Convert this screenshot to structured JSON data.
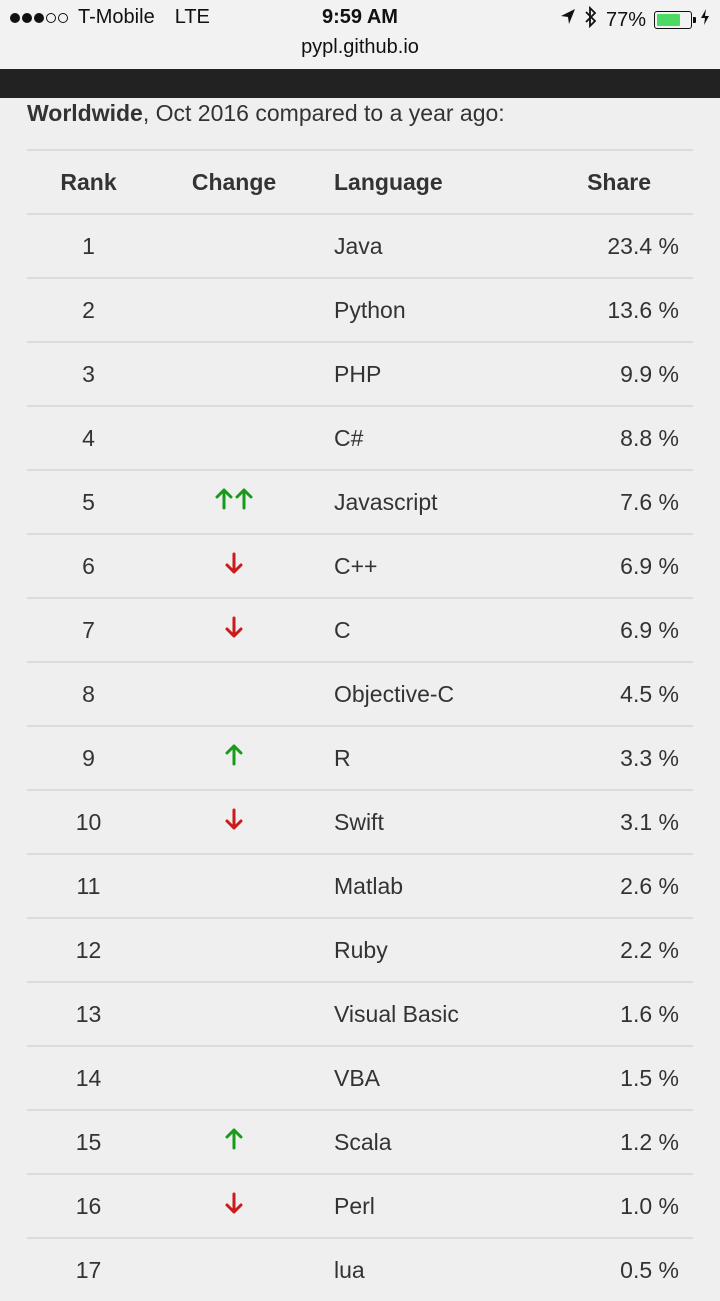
{
  "status_bar": {
    "carrier": "T-Mobile",
    "network": "LTE",
    "time": "9:59 AM",
    "battery_percent": "77%",
    "signal_bars_filled": 3,
    "signal_bars_total": 5,
    "battery_level": 0.77,
    "colors": {
      "battery_fill": "#4cd964"
    },
    "icons": [
      "location-arrow-icon",
      "bluetooth-icon",
      "battery-icon",
      "charging-bolt-icon"
    ]
  },
  "browser": {
    "url": "pypl.github.io"
  },
  "intro": {
    "region": "Worldwide",
    "text": ", Oct 2016 compared to a year ago:"
  },
  "table": {
    "headers": {
      "rank": "Rank",
      "change": "Change",
      "language": "Language",
      "share": "Share"
    },
    "colors": {
      "up": "#1a9a1a",
      "down": "#cc1a1a"
    },
    "rows": [
      {
        "rank": "1",
        "change": "none",
        "language": "Java",
        "share": "23.4 %"
      },
      {
        "rank": "2",
        "change": "none",
        "language": "Python",
        "share": "13.6 %"
      },
      {
        "rank": "3",
        "change": "none",
        "language": "PHP",
        "share": "9.9 %"
      },
      {
        "rank": "4",
        "change": "none",
        "language": "C#",
        "share": "8.8 %"
      },
      {
        "rank": "5",
        "change": "up2",
        "language": "Javascript",
        "share": "7.6 %"
      },
      {
        "rank": "6",
        "change": "down",
        "language": "C++",
        "share": "6.9 %"
      },
      {
        "rank": "7",
        "change": "down",
        "language": "C",
        "share": "6.9 %"
      },
      {
        "rank": "8",
        "change": "none",
        "language": "Objective-C",
        "share": "4.5 %"
      },
      {
        "rank": "9",
        "change": "up",
        "language": "R",
        "share": "3.3 %"
      },
      {
        "rank": "10",
        "change": "down",
        "language": "Swift",
        "share": "3.1 %"
      },
      {
        "rank": "11",
        "change": "none",
        "language": "Matlab",
        "share": "2.6 %"
      },
      {
        "rank": "12",
        "change": "none",
        "language": "Ruby",
        "share": "2.2 %"
      },
      {
        "rank": "13",
        "change": "none",
        "language": "Visual Basic",
        "share": "1.6 %"
      },
      {
        "rank": "14",
        "change": "none",
        "language": "VBA",
        "share": "1.5 %"
      },
      {
        "rank": "15",
        "change": "up",
        "language": "Scala",
        "share": "1.2 %"
      },
      {
        "rank": "16",
        "change": "down",
        "language": "Perl",
        "share": "1.0 %"
      },
      {
        "rank": "17",
        "change": "none",
        "language": "lua",
        "share": "0.5 %"
      }
    ]
  }
}
